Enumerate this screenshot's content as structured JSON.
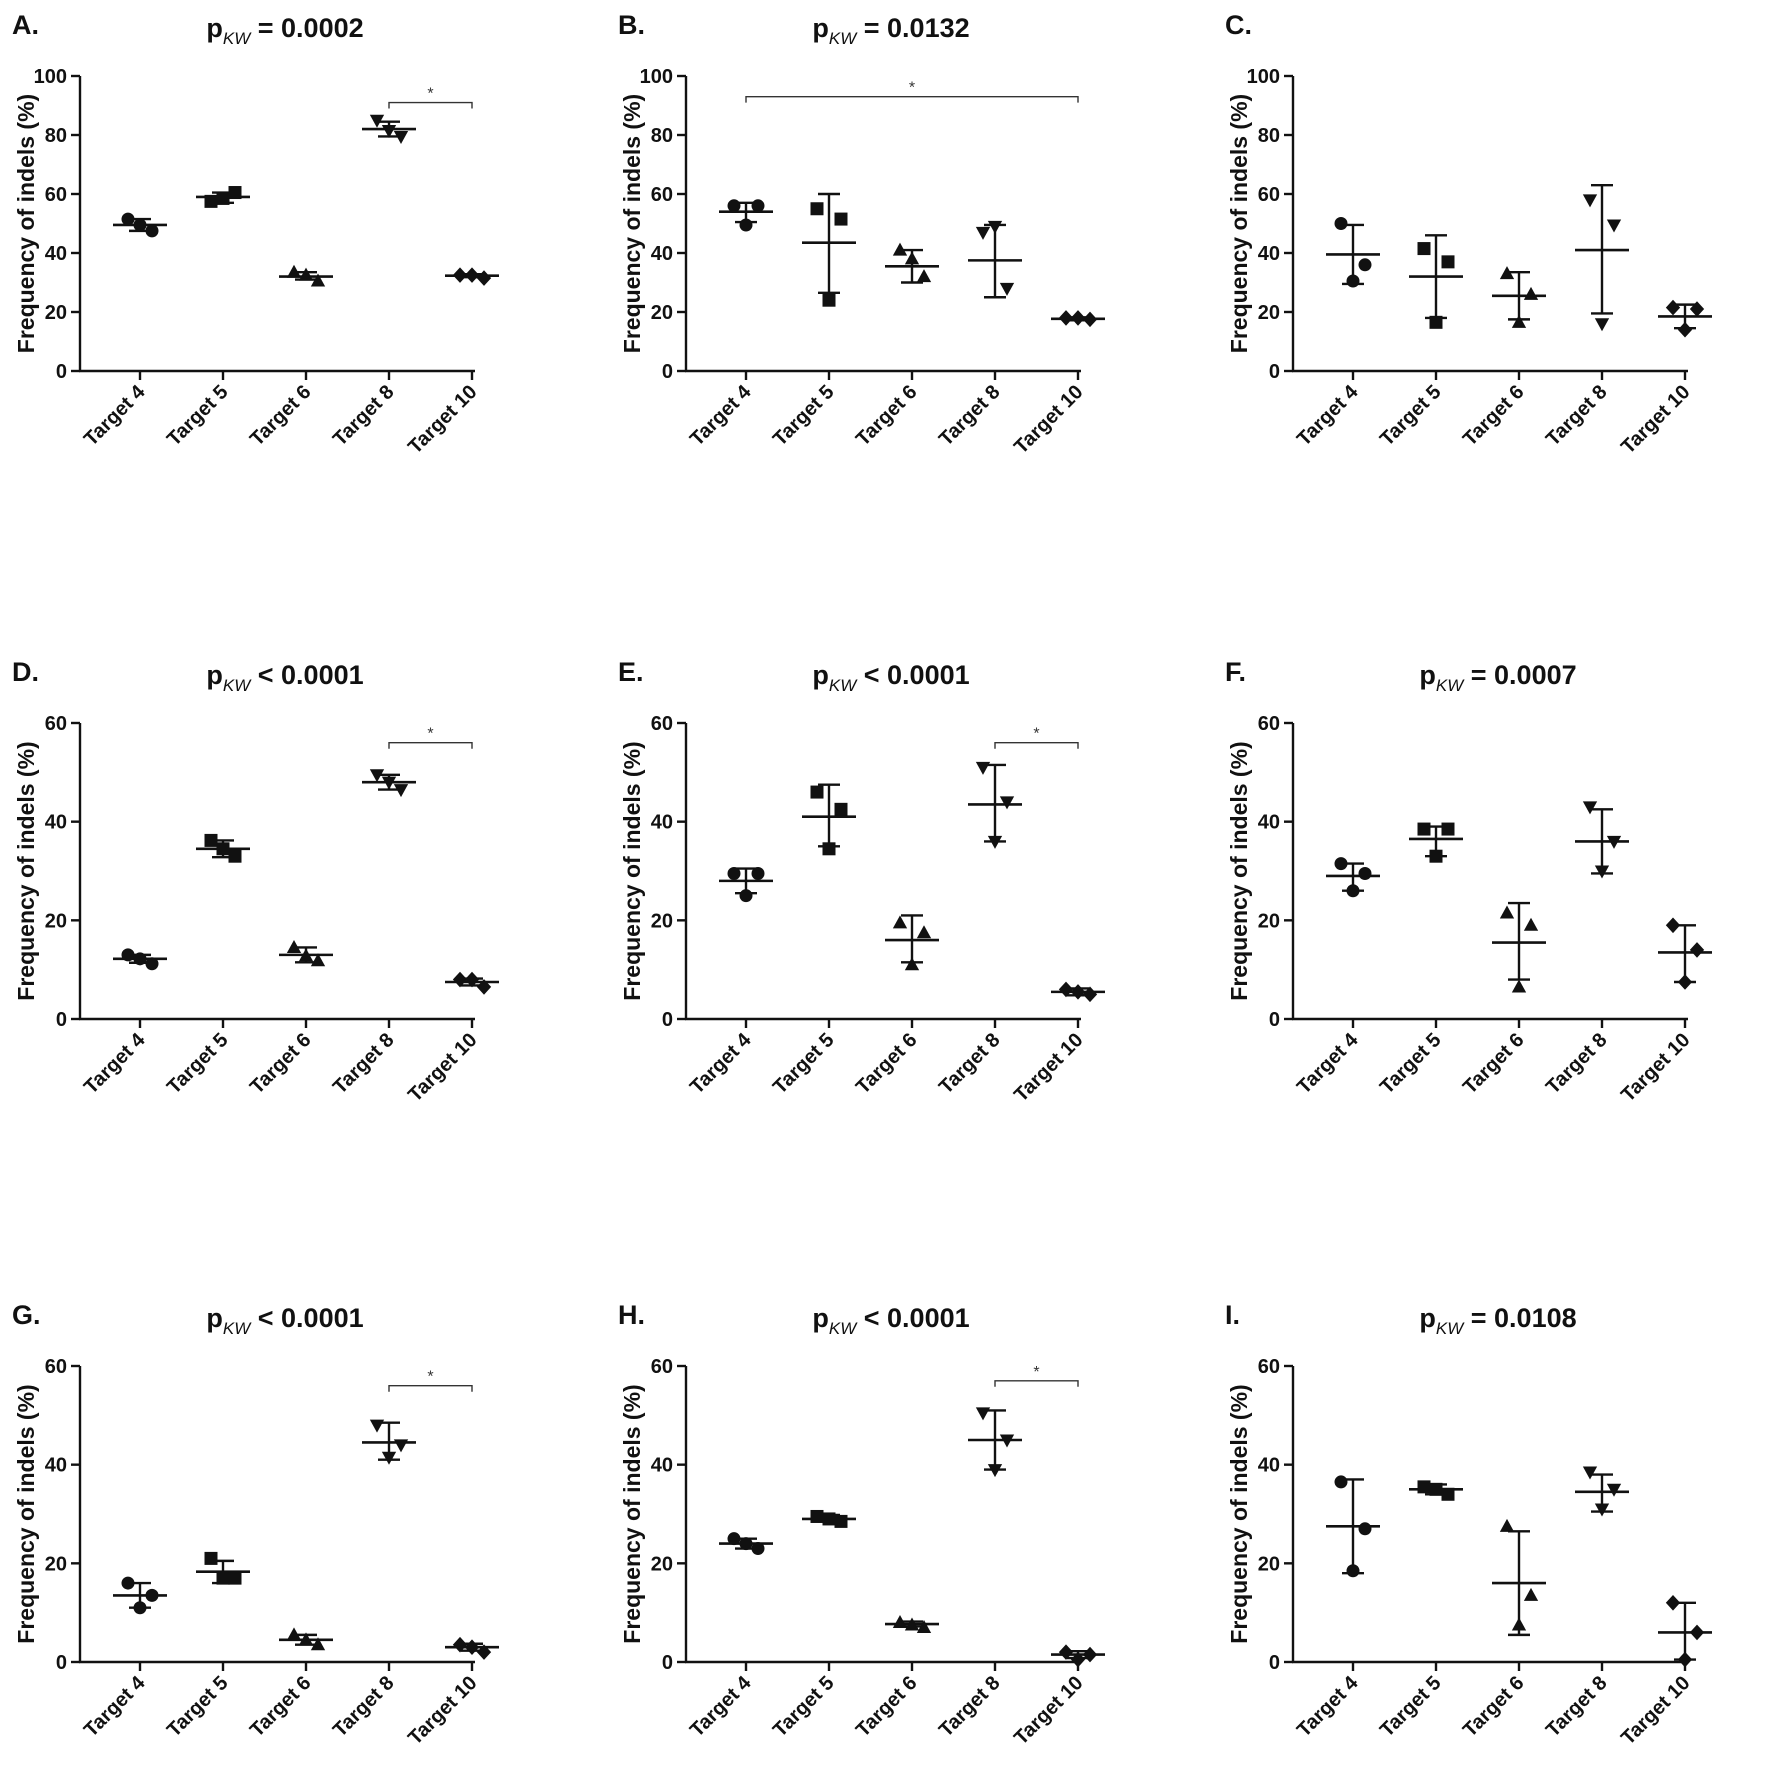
{
  "figure": {
    "ylabel": "Frequency of indels (%)",
    "categories": [
      "Target 4",
      "Target 5",
      "Target 6",
      "Target 8",
      "Target 10"
    ],
    "colors": {
      "ink": "#111111",
      "background": "#ffffff"
    }
  },
  "chart_data": [
    {
      "panel": "A.",
      "type": "scatter",
      "title_prefix": "p",
      "title_sub": "KW",
      "title_rest": " = 0.0002",
      "ylabel": "Frequency of indels (%)",
      "ylim": [
        0,
        100
      ],
      "yticks": [
        0,
        20,
        40,
        60,
        80,
        100
      ],
      "categories": [
        "Target 4",
        "Target 5",
        "Target 6",
        "Target 8",
        "Target 10"
      ],
      "series": [
        {
          "name": "Target 4",
          "marker": "circle",
          "points": [
            51.5,
            47.5,
            49.5
          ],
          "mean": 49.5,
          "sd_low": 47.5,
          "sd_high": 51.5
        },
        {
          "name": "Target 5",
          "marker": "square",
          "points": [
            57.5,
            60.5,
            58.5
          ],
          "mean": 59,
          "sd_low": 57,
          "sd_high": 60.5
        },
        {
          "name": "Target 6",
          "marker": "triangle-up",
          "points": [
            33.5,
            30.5,
            32.5
          ],
          "mean": 32,
          "sd_low": 31,
          "sd_high": 33.5
        },
        {
          "name": "Target 8",
          "marker": "triangle-down",
          "points": [
            85,
            79.5,
            81.5
          ],
          "mean": 82,
          "sd_low": 79.5,
          "sd_high": 84.5
        },
        {
          "name": "Target 10",
          "marker": "diamond",
          "points": [
            32.5,
            31.5,
            32.5
          ],
          "mean": 32.3,
          "sd_low": 31.8,
          "sd_high": 32.8
        }
      ],
      "comparisons": [
        {
          "from": 3,
          "to": 4,
          "y": 91,
          "label": "*"
        }
      ]
    },
    {
      "panel": "B.",
      "type": "scatter",
      "title_prefix": "p",
      "title_sub": "KW",
      "title_rest": " = 0.0132",
      "ylabel": "Frequency of indels (%)",
      "ylim": [
        0,
        100
      ],
      "yticks": [
        0,
        20,
        40,
        60,
        80,
        100
      ],
      "categories": [
        "Target 4",
        "Target 5",
        "Target 6",
        "Target 8",
        "Target 10"
      ],
      "series": [
        {
          "name": "Target 4",
          "marker": "circle",
          "points": [
            56,
            56,
            49.5
          ],
          "mean": 54,
          "sd_low": 50.5,
          "sd_high": 57
        },
        {
          "name": "Target 5",
          "marker": "square",
          "points": [
            55,
            51.5,
            24
          ],
          "mean": 43.5,
          "sd_low": 26.5,
          "sd_high": 60
        },
        {
          "name": "Target 6",
          "marker": "triangle-up",
          "points": [
            41,
            32,
            38
          ],
          "mean": 35.5,
          "sd_low": 30,
          "sd_high": 41
        },
        {
          "name": "Target 8",
          "marker": "triangle-down",
          "points": [
            47,
            28,
            49
          ],
          "mean": 37.5,
          "sd_low": 25,
          "sd_high": 49.5
        },
        {
          "name": "Target 10",
          "marker": "diamond",
          "points": [
            18,
            17.5,
            18
          ],
          "mean": 17.7,
          "sd_low": 17.2,
          "sd_high": 18.2
        }
      ],
      "comparisons": [
        {
          "from": 0,
          "to": 4,
          "y": 93,
          "label": "*"
        }
      ]
    },
    {
      "panel": "C.",
      "type": "scatter",
      "title_prefix": "",
      "title_sub": "",
      "title_rest": "",
      "ylabel": "Frequency of indels (%)",
      "ylim": [
        0,
        100
      ],
      "yticks": [
        0,
        20,
        40,
        60,
        80,
        100
      ],
      "categories": [
        "Target 4",
        "Target 5",
        "Target 6",
        "Target 8",
        "Target 10"
      ],
      "series": [
        {
          "name": "Target 4",
          "marker": "circle",
          "points": [
            50,
            36,
            30.5
          ],
          "mean": 39.5,
          "sd_low": 29.5,
          "sd_high": 49.5
        },
        {
          "name": "Target 5",
          "marker": "square",
          "points": [
            41.5,
            37,
            16.5
          ],
          "mean": 32,
          "sd_low": 18,
          "sd_high": 46
        },
        {
          "name": "Target 6",
          "marker": "triangle-up",
          "points": [
            33,
            26,
            16.5
          ],
          "mean": 25.5,
          "sd_low": 17.5,
          "sd_high": 33.5
        },
        {
          "name": "Target 8",
          "marker": "triangle-down",
          "points": [
            58,
            49.5,
            16
          ],
          "mean": 41,
          "sd_low": 19.5,
          "sd_high": 63
        },
        {
          "name": "Target 10",
          "marker": "diamond",
          "points": [
            21.5,
            21,
            14
          ],
          "mean": 18.5,
          "sd_low": 14.5,
          "sd_high": 22.5
        }
      ],
      "comparisons": []
    },
    {
      "panel": "D.",
      "type": "scatter",
      "title_prefix": "p",
      "title_sub": "KW",
      "title_rest": " < 0.0001",
      "ylabel": "Frequency of indels (%)",
      "ylim": [
        0,
        60
      ],
      "yticks": [
        0,
        20,
        40,
        60
      ],
      "categories": [
        "Target 4",
        "Target 5",
        "Target 6",
        "Target 8",
        "Target 10"
      ],
      "series": [
        {
          "name": "Target 4",
          "marker": "circle",
          "points": [
            13,
            11.2,
            12.2
          ],
          "mean": 12.2,
          "sd_low": 11.4,
          "sd_high": 13
        },
        {
          "name": "Target 5",
          "marker": "square",
          "points": [
            36.2,
            33,
            34.5
          ],
          "mean": 34.5,
          "sd_low": 32.8,
          "sd_high": 36.2
        },
        {
          "name": "Target 6",
          "marker": "triangle-up",
          "points": [
            14.5,
            11.8,
            12.8
          ],
          "mean": 13,
          "sd_low": 11.5,
          "sd_high": 14.5
        },
        {
          "name": "Target 8",
          "marker": "triangle-down",
          "points": [
            49.5,
            46.5,
            48
          ],
          "mean": 48,
          "sd_low": 46.5,
          "sd_high": 49.5
        },
        {
          "name": "Target 10",
          "marker": "diamond",
          "points": [
            8,
            6.5,
            8
          ],
          "mean": 7.5,
          "sd_low": 6.8,
          "sd_high": 8.2
        }
      ],
      "comparisons": [
        {
          "from": 3,
          "to": 4,
          "y": 56,
          "label": "*"
        }
      ]
    },
    {
      "panel": "E.",
      "type": "scatter",
      "title_prefix": "p",
      "title_sub": "KW",
      "title_rest": " < 0.0001",
      "ylabel": "Frequency of indels (%)",
      "ylim": [
        0,
        60
      ],
      "yticks": [
        0,
        20,
        40,
        60
      ],
      "categories": [
        "Target 4",
        "Target 5",
        "Target 6",
        "Target 8",
        "Target 10"
      ],
      "series": [
        {
          "name": "Target 4",
          "marker": "circle",
          "points": [
            29.5,
            29.5,
            25
          ],
          "mean": 28,
          "sd_low": 25.5,
          "sd_high": 30.5
        },
        {
          "name": "Target 5",
          "marker": "square",
          "points": [
            46,
            42.5,
            34.5
          ],
          "mean": 41,
          "sd_low": 35,
          "sd_high": 47.5
        },
        {
          "name": "Target 6",
          "marker": "triangle-up",
          "points": [
            19.5,
            17.5,
            11
          ],
          "mean": 16,
          "sd_low": 11.5,
          "sd_high": 21
        },
        {
          "name": "Target 8",
          "marker": "triangle-down",
          "points": [
            51,
            44,
            36
          ],
          "mean": 43.5,
          "sd_low": 36,
          "sd_high": 51.5
        },
        {
          "name": "Target 10",
          "marker": "diamond",
          "points": [
            6,
            5,
            5.5
          ],
          "mean": 5.5,
          "sd_low": 4.8,
          "sd_high": 6.2
        }
      ],
      "comparisons": [
        {
          "from": 3,
          "to": 4,
          "y": 56,
          "label": "*"
        }
      ]
    },
    {
      "panel": "F.",
      "type": "scatter",
      "title_prefix": "p",
      "title_sub": "KW",
      "title_rest": " = 0.0007",
      "ylabel": "Frequency of indels (%)",
      "ylim": [
        0,
        60
      ],
      "yticks": [
        0,
        20,
        40,
        60
      ],
      "categories": [
        "Target 4",
        "Target 5",
        "Target 6",
        "Target 8",
        "Target 10"
      ],
      "series": [
        {
          "name": "Target 4",
          "marker": "circle",
          "points": [
            31.5,
            29.5,
            26
          ],
          "mean": 29,
          "sd_low": 26,
          "sd_high": 31.5
        },
        {
          "name": "Target 5",
          "marker": "square",
          "points": [
            38.5,
            38.5,
            33
          ],
          "mean": 36.5,
          "sd_low": 33,
          "sd_high": 39
        },
        {
          "name": "Target 6",
          "marker": "triangle-up",
          "points": [
            21.5,
            19,
            6.5
          ],
          "mean": 15.5,
          "sd_low": 8,
          "sd_high": 23.5
        },
        {
          "name": "Target 8",
          "marker": "triangle-down",
          "points": [
            43,
            36,
            30
          ],
          "mean": 36,
          "sd_low": 29.5,
          "sd_high": 42.5
        },
        {
          "name": "Target 10",
          "marker": "diamond",
          "points": [
            19,
            14,
            7.5
          ],
          "mean": 13.5,
          "sd_low": 7.5,
          "sd_high": 19
        }
      ],
      "comparisons": []
    },
    {
      "panel": "G.",
      "type": "scatter",
      "title_prefix": "p",
      "title_sub": "KW",
      "title_rest": " < 0.0001",
      "ylabel": "Frequency of indels (%)",
      "ylim": [
        0,
        60
      ],
      "yticks": [
        0,
        20,
        40,
        60
      ],
      "categories": [
        "Target 4",
        "Target 5",
        "Target 6",
        "Target 8",
        "Target 10"
      ],
      "series": [
        {
          "name": "Target 4",
          "marker": "circle",
          "points": [
            16,
            13.5,
            11
          ],
          "mean": 13.5,
          "sd_low": 11,
          "sd_high": 16
        },
        {
          "name": "Target 5",
          "marker": "square",
          "points": [
            21,
            17,
            17
          ],
          "mean": 18.3,
          "sd_low": 16,
          "sd_high": 20.5
        },
        {
          "name": "Target 6",
          "marker": "triangle-up",
          "points": [
            5.5,
            3.5,
            4.5
          ],
          "mean": 4.5,
          "sd_low": 3.5,
          "sd_high": 5.5
        },
        {
          "name": "Target 8",
          "marker": "triangle-down",
          "points": [
            48,
            44,
            41.5
          ],
          "mean": 44.5,
          "sd_low": 41,
          "sd_high": 48.5
        },
        {
          "name": "Target 10",
          "marker": "diamond",
          "points": [
            3.5,
            2,
            3
          ],
          "mean": 3,
          "sd_low": 2.3,
          "sd_high": 3.7
        }
      ],
      "comparisons": [
        {
          "from": 3,
          "to": 4,
          "y": 56,
          "label": "*"
        }
      ]
    },
    {
      "panel": "H.",
      "type": "scatter",
      "title_prefix": "p",
      "title_sub": "KW",
      "title_rest": " < 0.0001",
      "ylabel": "Frequency of indels (%)",
      "ylim": [
        0,
        60
      ],
      "yticks": [
        0,
        20,
        40,
        60
      ],
      "categories": [
        "Target 4",
        "Target 5",
        "Target 6",
        "Target 8",
        "Target 10"
      ],
      "series": [
        {
          "name": "Target 4",
          "marker": "circle",
          "points": [
            25,
            23,
            24
          ],
          "mean": 24,
          "sd_low": 23,
          "sd_high": 25
        },
        {
          "name": "Target 5",
          "marker": "square",
          "points": [
            29.5,
            28.5,
            29
          ],
          "mean": 29,
          "sd_low": 28.5,
          "sd_high": 29.8
        },
        {
          "name": "Target 6",
          "marker": "triangle-up",
          "points": [
            8,
            7,
            7.5
          ],
          "mean": 7.7,
          "sd_low": 7.2,
          "sd_high": 8.2
        },
        {
          "name": "Target 8",
          "marker": "triangle-down",
          "points": [
            50.5,
            45,
            39
          ],
          "mean": 45,
          "sd_low": 39,
          "sd_high": 51
        },
        {
          "name": "Target 10",
          "marker": "diamond",
          "points": [
            2,
            1.5,
            0.5
          ],
          "mean": 1.5,
          "sd_low": 0.8,
          "sd_high": 2.2
        }
      ],
      "comparisons": [
        {
          "from": 3,
          "to": 4,
          "y": 57,
          "label": "*"
        }
      ]
    },
    {
      "panel": "I.",
      "type": "scatter",
      "title_prefix": "p",
      "title_sub": "KW",
      "title_rest": " = 0.0108",
      "ylabel": "Frequency of indels (%)",
      "ylim": [
        0,
        60
      ],
      "yticks": [
        0,
        20,
        40,
        60
      ],
      "categories": [
        "Target 4",
        "Target 5",
        "Target 6",
        "Target 8",
        "Target 10"
      ],
      "series": [
        {
          "name": "Target 4",
          "marker": "circle",
          "points": [
            36.5,
            27,
            18.5
          ],
          "mean": 27.5,
          "sd_low": 18,
          "sd_high": 37
        },
        {
          "name": "Target 5",
          "marker": "square",
          "points": [
            35.5,
            34,
            35
          ],
          "mean": 35,
          "sd_low": 34,
          "sd_high": 36
        },
        {
          "name": "Target 6",
          "marker": "triangle-up",
          "points": [
            27.5,
            13.5,
            7.5
          ],
          "mean": 16,
          "sd_low": 5.5,
          "sd_high": 26.5
        },
        {
          "name": "Target 8",
          "marker": "triangle-down",
          "points": [
            38.5,
            35,
            31
          ],
          "mean": 34.5,
          "sd_low": 30.5,
          "sd_high": 38
        },
        {
          "name": "Target 10",
          "marker": "diamond",
          "points": [
            12,
            6,
            0.5
          ],
          "mean": 6,
          "sd_low": 0.5,
          "sd_high": 12
        }
      ],
      "comparisons": []
    }
  ]
}
